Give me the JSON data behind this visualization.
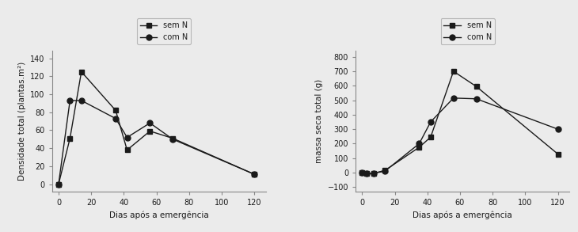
{
  "plot_A": {
    "x": [
      0,
      7,
      14,
      35,
      42,
      56,
      70,
      120
    ],
    "sem_N": [
      0,
      51,
      125,
      82,
      38,
      59,
      51,
      11
    ],
    "com_N": [
      0,
      93,
      93,
      73,
      52,
      68,
      50,
      11
    ],
    "ylabel": "Densidade total (plantas.m²)",
    "xlabel": "Dias após a emergência",
    "yticks": [
      0,
      20,
      40,
      60,
      80,
      100,
      120,
      140
    ],
    "xticks": [
      0,
      20,
      40,
      60,
      80,
      100,
      120
    ],
    "ylim": [
      -8,
      148
    ],
    "xlim": [
      -4,
      127
    ]
  },
  "plot_B": {
    "x": [
      0,
      3,
      7,
      14,
      35,
      42,
      56,
      70,
      120
    ],
    "sem_N": [
      0,
      -5,
      -5,
      15,
      175,
      245,
      700,
      595,
      128
    ],
    "com_N": [
      0,
      -5,
      -5,
      10,
      200,
      350,
      515,
      510,
      300
    ],
    "ylabel": "massa seca total (g)",
    "xlabel": "Dias após a emergência",
    "yticks": [
      -100,
      0,
      100,
      200,
      300,
      400,
      500,
      600,
      700,
      800
    ],
    "xticks": [
      0,
      20,
      40,
      60,
      80,
      100,
      120
    ],
    "ylim": [
      -130,
      840
    ],
    "xlim": [
      -4,
      127
    ]
  },
  "legend_labels": [
    "sem N",
    "com N"
  ],
  "line_color": "#1a1a1a",
  "sem_N_marker": "s",
  "com_N_marker": "o",
  "linewidth": 1.0,
  "markersize": 5,
  "bg_color": "#ebebeb",
  "font_color": "#1a1a1a"
}
